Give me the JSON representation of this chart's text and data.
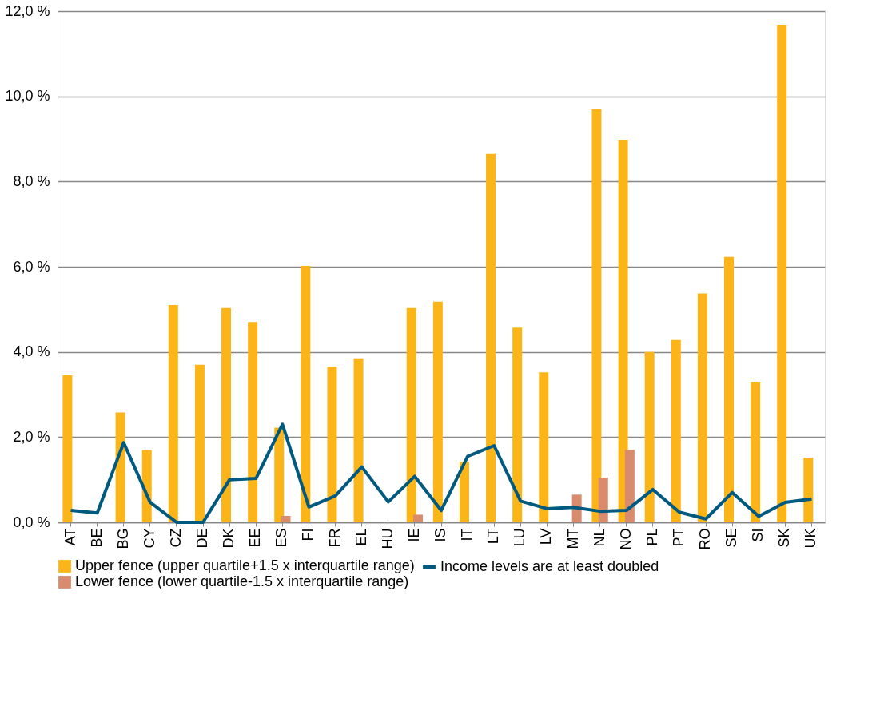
{
  "chart_data": {
    "type": "bar",
    "categories": [
      "AT",
      "BE",
      "BG",
      "CY",
      "CZ",
      "DE",
      "DK",
      "EE",
      "ES",
      "FI",
      "FR",
      "EL",
      "HU",
      "IE",
      "IS",
      "IT",
      "LT",
      "LU",
      "LV",
      "MT",
      "NL",
      "NO",
      "PL",
      "PT",
      "RO",
      "SE",
      "SI",
      "SK",
      "UK"
    ],
    "series": [
      {
        "name": "Upper fence (upper quartile+1.5 x interquartile range)",
        "color": "#fbb519",
        "values": [
          3.45,
          null,
          2.58,
          1.7,
          5.1,
          3.7,
          5.03,
          4.7,
          2.22,
          6.02,
          3.65,
          3.85,
          null,
          5.03,
          5.18,
          1.42,
          8.65,
          4.57,
          3.52,
          null,
          9.7,
          8.98,
          4.0,
          4.28,
          5.37,
          6.23,
          3.3,
          11.68,
          1.52
        ]
      },
      {
        "name": "Lower fence (lower quartile-1.5 x interquartile range)",
        "color": "#d98b6d",
        "values": [
          null,
          null,
          null,
          null,
          null,
          null,
          null,
          null,
          0.15,
          null,
          null,
          null,
          null,
          0.18,
          null,
          null,
          null,
          null,
          null,
          0.65,
          1.05,
          1.7,
          null,
          null,
          null,
          null,
          null,
          null,
          null
        ]
      },
      {
        "name": "Income levels are at least doubled",
        "type": "line",
        "color": "#005a80",
        "values": [
          0.28,
          0.22,
          1.87,
          0.47,
          0.0,
          0.0,
          1.0,
          1.03,
          2.3,
          0.36,
          0.62,
          1.3,
          0.48,
          1.08,
          0.28,
          1.55,
          1.8,
          0.5,
          0.32,
          0.35,
          0.26,
          0.28,
          0.77,
          0.24,
          0.08,
          0.7,
          0.14,
          0.47,
          0.55
        ]
      }
    ],
    "ylim": [
      0,
      12
    ],
    "yticks": [
      {
        "value": 0,
        "label": "0,0 %"
      },
      {
        "value": 2,
        "label": "2,0 %"
      },
      {
        "value": 4,
        "label": "4,0 %"
      },
      {
        "value": 6,
        "label": "6,0 %"
      },
      {
        "value": 8,
        "label": "8,0 %"
      },
      {
        "value": 10,
        "label": "10,0 %"
      },
      {
        "value": 12,
        "label": "12,0 %"
      }
    ],
    "grid": "y",
    "legend": "bottom",
    "marker": "none",
    "line_style": "solid"
  }
}
